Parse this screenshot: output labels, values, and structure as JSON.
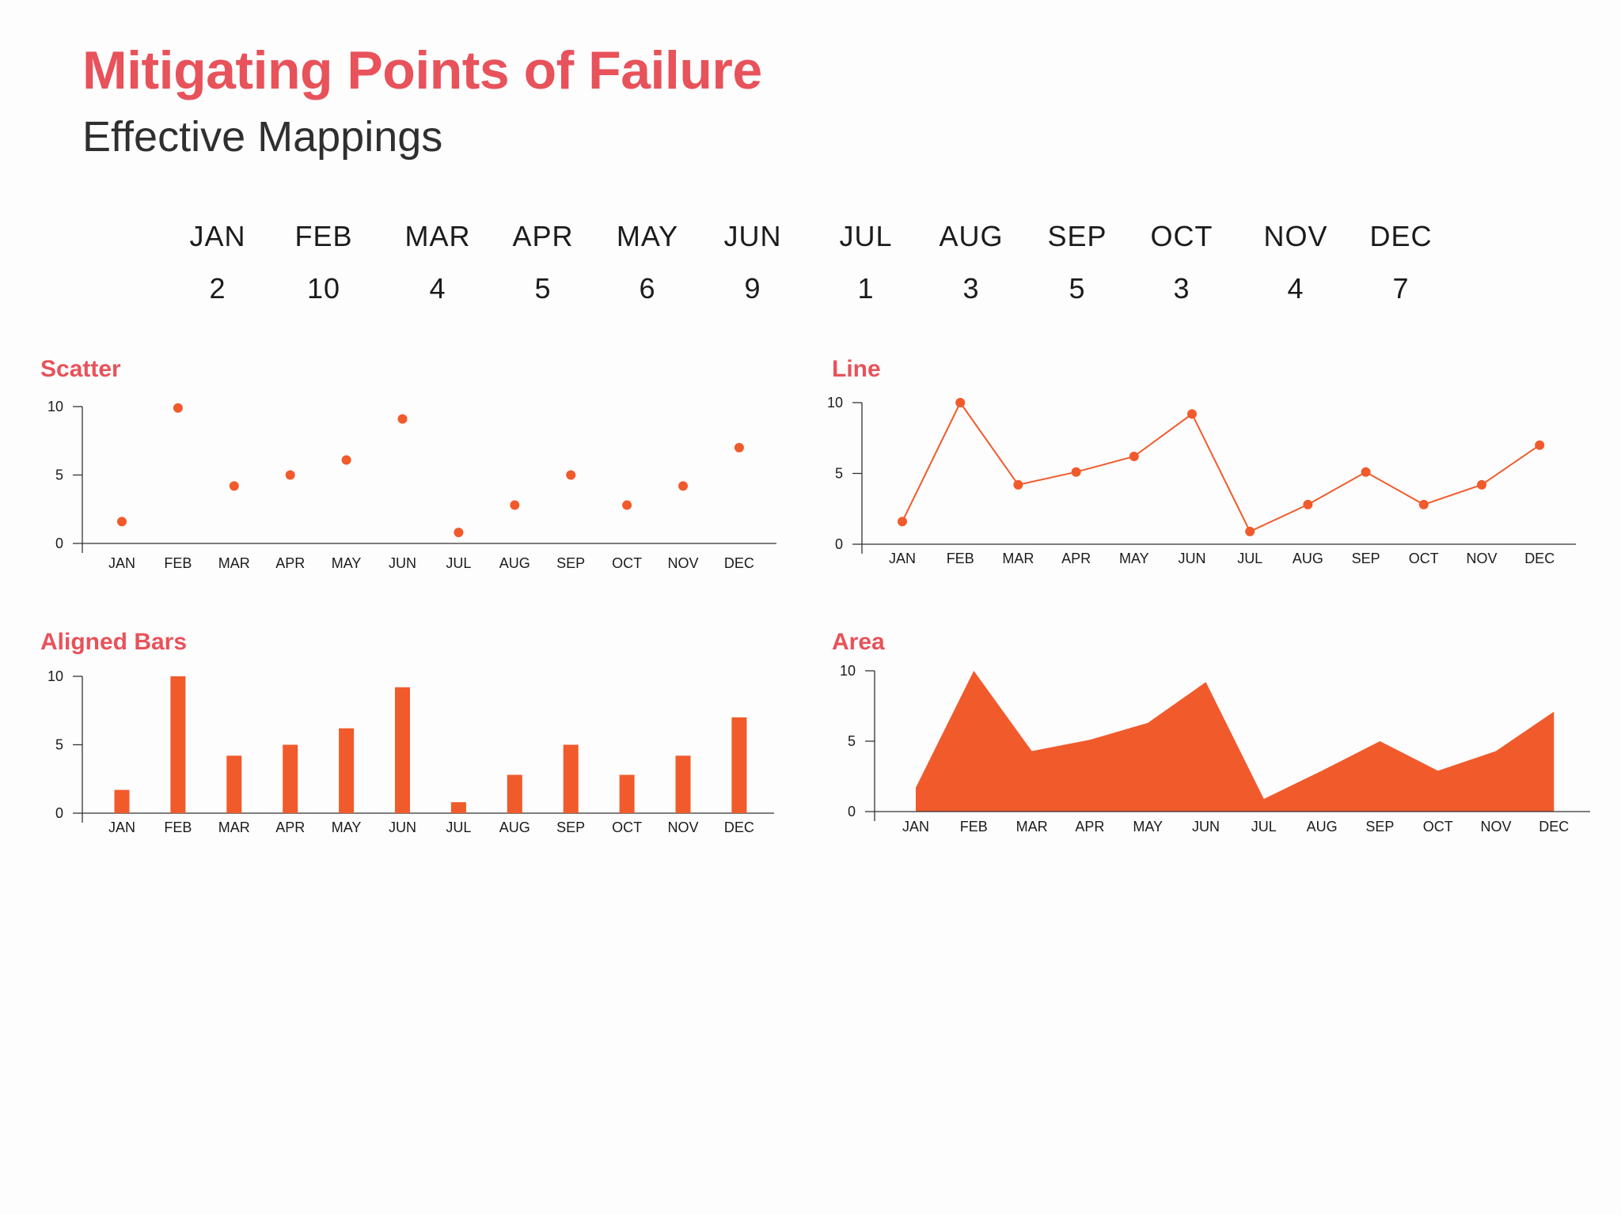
{
  "header": {
    "title": "Mitigating Points of Failure",
    "subtitle": "Effective Mappings"
  },
  "colors": {
    "accent": "#f15a2b",
    "title": "#e8525a",
    "text": "#1b1b1b"
  },
  "months": [
    "JAN",
    "FEB",
    "MAR",
    "APR",
    "MAY",
    "JUN",
    "JUL",
    "AUG",
    "SEP",
    "OCT",
    "NOV",
    "DEC"
  ],
  "values": [
    "2",
    "10",
    "4",
    "5",
    "6",
    "9",
    "1",
    "3",
    "5",
    "3",
    "4",
    "7"
  ],
  "chart_data": [
    {
      "type": "scatter",
      "title": "Scatter",
      "categories": [
        "JAN",
        "FEB",
        "MAR",
        "APR",
        "MAY",
        "JUN",
        "JUL",
        "AUG",
        "SEP",
        "OCT",
        "NOV",
        "DEC"
      ],
      "values": [
        1.6,
        9.9,
        4.2,
        5.0,
        6.1,
        9.1,
        0.8,
        2.8,
        5.0,
        2.8,
        4.2,
        7.0
      ],
      "ylim": [
        0,
        10
      ],
      "yticks": [
        "0",
        "5",
        "10"
      ]
    },
    {
      "type": "line",
      "title": "Line",
      "categories": [
        "JAN",
        "FEB",
        "MAR",
        "APR",
        "MAY",
        "JUN",
        "JUL",
        "AUG",
        "SEP",
        "OCT",
        "NOV",
        "DEC"
      ],
      "values": [
        1.6,
        10.0,
        4.2,
        5.1,
        6.2,
        9.2,
        0.9,
        2.8,
        5.1,
        2.8,
        4.2,
        7.0
      ],
      "ylim": [
        0,
        10
      ],
      "yticks": [
        "0",
        "5",
        "10"
      ]
    },
    {
      "type": "bar",
      "title": "Aligned Bars",
      "categories": [
        "JAN",
        "FEB",
        "MAR",
        "APR",
        "MAY",
        "JUN",
        "JUL",
        "AUG",
        "SEP",
        "OCT",
        "NOV",
        "DEC"
      ],
      "values": [
        1.7,
        10.0,
        4.2,
        5.0,
        6.2,
        9.2,
        0.8,
        2.8,
        5.0,
        2.8,
        4.2,
        7.0
      ],
      "ylim": [
        0,
        10
      ],
      "yticks": [
        "0",
        "5",
        "10"
      ]
    },
    {
      "type": "area",
      "title": "Area",
      "categories": [
        "JAN",
        "FEB",
        "MAR",
        "APR",
        "MAY",
        "JUN",
        "JUL",
        "AUG",
        "SEP",
        "OCT",
        "NOV",
        "DEC"
      ],
      "values": [
        1.7,
        10.0,
        4.3,
        5.1,
        6.3,
        9.2,
        0.9,
        2.9,
        5.0,
        2.9,
        4.3,
        7.1
      ],
      "ylim": [
        0,
        10
      ],
      "yticks": [
        "0",
        "5",
        "10"
      ]
    }
  ]
}
